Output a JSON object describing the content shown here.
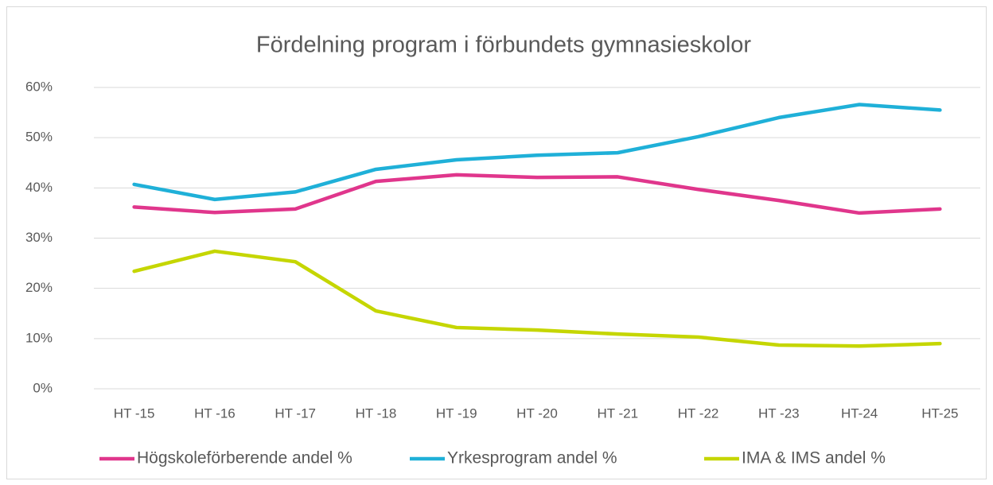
{
  "chart_data": {
    "type": "line",
    "title": "Fördelning program i förbundets gymnasieskolor",
    "categories": [
      "HT -15",
      "HT -16",
      "HT -17",
      "HT -18",
      "HT -19",
      "HT -20",
      "HT -21",
      "HT -22",
      "HT -23",
      "HT-24",
      "HT-25"
    ],
    "series": [
      {
        "name": "Högskoleförberende andel %",
        "color": "#e0368c",
        "values": [
          36.2,
          35.1,
          35.8,
          41.3,
          42.6,
          42.1,
          42.2,
          39.7,
          37.5,
          35.0,
          35.8
        ]
      },
      {
        "name": "Yrkesprogram andel %",
        "color": "#1fb0d8",
        "values": [
          40.7,
          37.7,
          39.2,
          43.7,
          45.6,
          46.5,
          47.0,
          50.2,
          54.0,
          56.6,
          55.5
        ]
      },
      {
        "name": "IMA & IMS andel %",
        "color": "#c5d600",
        "values": [
          23.4,
          27.4,
          25.3,
          15.5,
          12.2,
          11.7,
          10.9,
          10.3,
          8.7,
          8.5,
          9.0
        ]
      }
    ],
    "ylim": [
      0,
      60
    ],
    "yticks": [
      {
        "value": 0,
        "label": "0%"
      },
      {
        "value": 10,
        "label": "10%"
      },
      {
        "value": 20,
        "label": "20%"
      },
      {
        "value": 30,
        "label": "30%"
      },
      {
        "value": 40,
        "label": "40%"
      },
      {
        "value": 50,
        "label": "50%"
      },
      {
        "value": 60,
        "label": "60%"
      }
    ],
    "grid": true,
    "legend": "bottom"
  }
}
